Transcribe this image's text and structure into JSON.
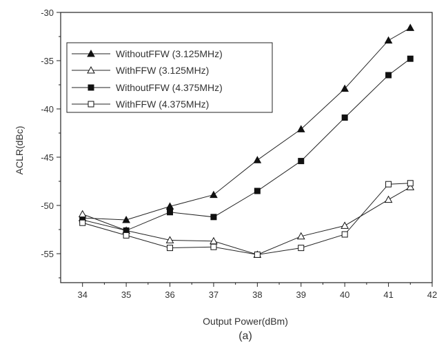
{
  "chart_data": {
    "type": "line",
    "title": "",
    "caption": "(a)",
    "xlabel": "Output Power(dBm)",
    "ylabel": "ACLR(dBc)",
    "xlim": [
      33.5,
      42
    ],
    "ylim": [
      -58,
      -30
    ],
    "xticks": [
      34,
      35,
      36,
      37,
      38,
      39,
      40,
      41,
      42
    ],
    "yticks": [
      -30,
      -35,
      -40,
      -45,
      -50,
      -55
    ],
    "grid": false,
    "legend_position": "top-left",
    "x": [
      34,
      35,
      36,
      37,
      38,
      39,
      40,
      41,
      41.5
    ],
    "series": [
      {
        "name": "WithoutFFW (3.125MHz)",
        "marker": "filled-triangle",
        "values": [
          -51.3,
          -51.5,
          -50.1,
          -48.9,
          -45.3,
          -42.1,
          -37.9,
          -32.9,
          -31.6
        ]
      },
      {
        "name": "WithFFW (3.125MHz)",
        "marker": "open-triangle",
        "values": [
          -50.9,
          -52.6,
          -53.6,
          -53.7,
          -55.1,
          -53.2,
          -52.1,
          -49.4,
          -48.1
        ]
      },
      {
        "name": "WithoutFFW (4.375MHz)",
        "marker": "filled-square",
        "values": [
          -51.5,
          -52.6,
          -50.7,
          -51.2,
          -48.5,
          -45.4,
          -40.9,
          -36.5,
          -34.8
        ]
      },
      {
        "name": "WithFFW (4.375MHz)",
        "marker": "open-square",
        "values": [
          -51.8,
          -53.1,
          -54.4,
          -54.3,
          -55.1,
          -54.4,
          -53.0,
          -47.8,
          -47.7
        ]
      }
    ]
  }
}
